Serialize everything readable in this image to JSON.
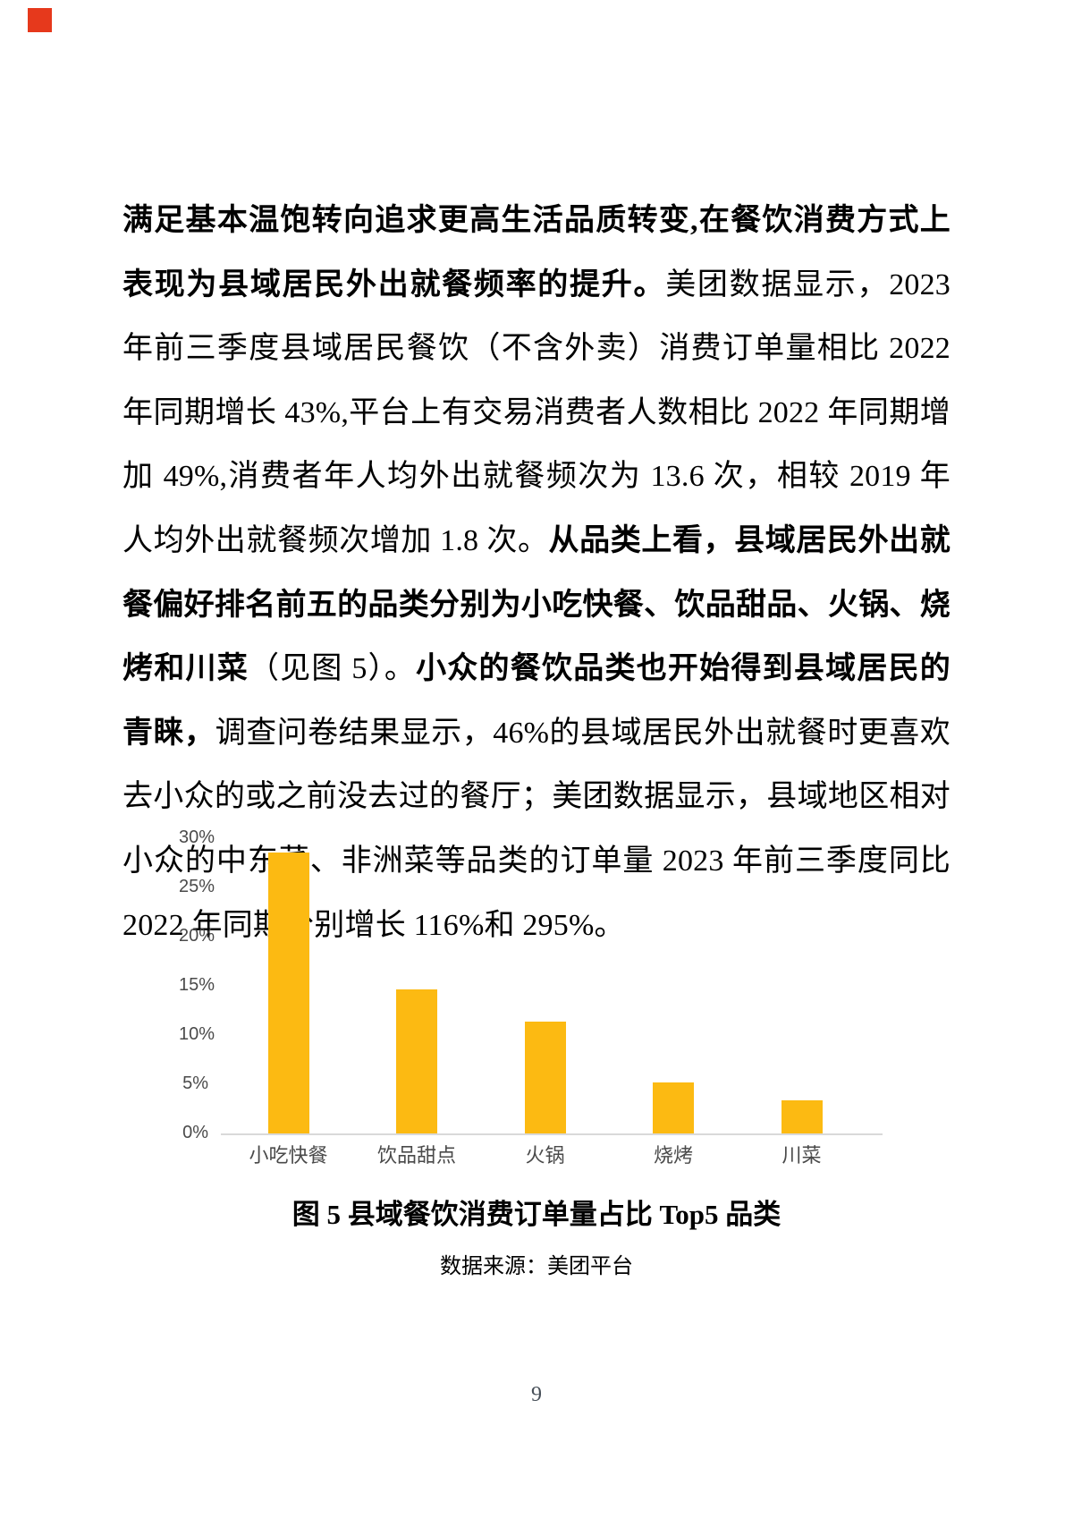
{
  "page": {
    "number": "9",
    "background": "#ffffff"
  },
  "decoration": {
    "red_square_color": "#e6391c"
  },
  "paragraph": {
    "segments": [
      {
        "bold": true,
        "text": "满足基本温饱转向追求更高生活品质转变,在餐饮消费方式上表现为县域居民外出就餐频率的提升。"
      },
      {
        "bold": false,
        "text": "美团数据显示，2023 年前三季度县域居民餐饮（不含外卖）消费订单量相比 2022 年同期增长 43%,平台上有交易消费者人数相比 2022 年同期增加 49%,消费者年人均外出就餐频次为 13.6 次，相较 2019 年人均外出就餐频次增加 1.8 次。"
      },
      {
        "bold": true,
        "text": "从品类上看，县域居民外出就餐偏好排名前五的品类分别为小吃快餐、饮品甜品、火锅、烧烤和川菜"
      },
      {
        "bold": false,
        "text": "（见图 5）。"
      },
      {
        "bold": true,
        "text": "小众的餐饮品类也开始得到县域居民的青睐，"
      },
      {
        "bold": false,
        "text": "调查问卷结果显示，46%的县域居民外出就餐时更喜欢去小众的或之前没去过的餐厅；美团数据显示，县域地区相对小众的中东菜、非洲菜等品类的订单量 2023 年前三季度同比 2022 年同期分别增长 116%和 295%。"
      }
    ]
  },
  "chart_data": {
    "type": "bar",
    "title": "",
    "categories": [
      "小吃快餐",
      "饮品甜点",
      "火锅",
      "烧烤",
      "川菜"
    ],
    "values": [
      28.5,
      14.6,
      11.4,
      5.2,
      3.4
    ],
    "unit": "percent",
    "ylim": [
      0,
      30
    ],
    "yticks": [
      "30%",
      "25%",
      "20%",
      "15%",
      "10%",
      "5%",
      "0%"
    ],
    "grid": false,
    "legend": "none",
    "bar_color": "#fcba12",
    "axis_line_color": "#d9d9d9",
    "label_color": "#4a4a4a"
  },
  "figure": {
    "caption": "图 5  县域餐饮消费订单量占比 Top5 品类",
    "source": "数据来源：美团平台"
  }
}
